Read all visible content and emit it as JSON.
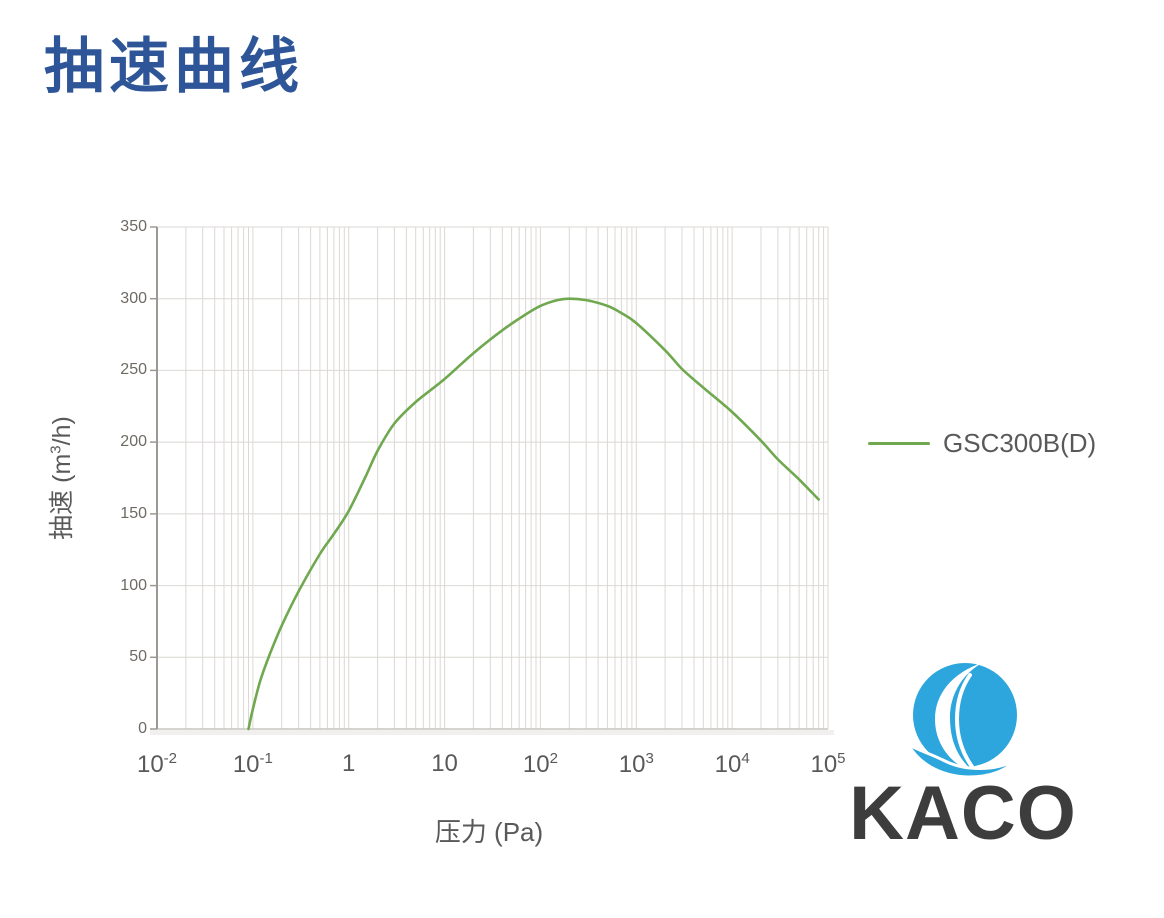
{
  "title": {
    "text": "抽速曲线",
    "color": "#2d5597"
  },
  "chart_data": {
    "type": "line",
    "title": "抽速曲线",
    "xlabel": "压力 (Pa)",
    "ylabel": "抽速 (m³/h)",
    "ylabel_parts": {
      "pre": "抽速 (m",
      "sup": "3",
      "post": "/h)"
    },
    "x_scale": "log",
    "xlim": [
      0.01,
      100000
    ],
    "ylim": [
      0,
      350
    ],
    "grid": "on",
    "legend_position": "right",
    "y_ticks": [
      0,
      50,
      100,
      150,
      200,
      250,
      300,
      350
    ],
    "x_ticks": [
      {
        "value": 0.01,
        "base": "10",
        "exp": "-2"
      },
      {
        "value": 0.1,
        "base": "10",
        "exp": "-1"
      },
      {
        "value": 1,
        "base": "1",
        "exp": ""
      },
      {
        "value": 10,
        "base": "10",
        "exp": ""
      },
      {
        "value": 100,
        "base": "10",
        "exp": "2"
      },
      {
        "value": 1000,
        "base": "10",
        "exp": "3"
      },
      {
        "value": 10000,
        "base": "10",
        "exp": "4"
      },
      {
        "value": 100000,
        "base": "10",
        "exp": "5"
      }
    ],
    "series": [
      {
        "name": "GSC300B(D)",
        "color": "#6fa84f",
        "points": [
          [
            0.09,
            0
          ],
          [
            0.1,
            14
          ],
          [
            0.12,
            34
          ],
          [
            0.15,
            52
          ],
          [
            0.2,
            72
          ],
          [
            0.3,
            96
          ],
          [
            0.5,
            122
          ],
          [
            0.7,
            136
          ],
          [
            1,
            152
          ],
          [
            1.5,
            176
          ],
          [
            2,
            194
          ],
          [
            3,
            213
          ],
          [
            5,
            228
          ],
          [
            10,
            244
          ],
          [
            20,
            262
          ],
          [
            40,
            278
          ],
          [
            70,
            289
          ],
          [
            100,
            295
          ],
          [
            150,
            299
          ],
          [
            200,
            300
          ],
          [
            300,
            299
          ],
          [
            500,
            295
          ],
          [
            700,
            290
          ],
          [
            1000,
            283
          ],
          [
            2000,
            264
          ],
          [
            3000,
            251
          ],
          [
            5000,
            238
          ],
          [
            10000,
            221
          ],
          [
            20000,
            201
          ],
          [
            30000,
            188
          ],
          [
            50000,
            174
          ],
          [
            80000,
            160
          ]
        ]
      }
    ]
  },
  "colors": {
    "grid": "#dbd8d4",
    "y_axis": "#9c9894",
    "x_axis": "#c9c5c1",
    "axis_text": "#595959",
    "y_tick_text": "#6e6a64"
  },
  "logo": {
    "text": "KACO",
    "text_color": "#3d3d3d",
    "icon": "kaco-globe-wave-icon",
    "icon_color": "#2ca6dc"
  }
}
